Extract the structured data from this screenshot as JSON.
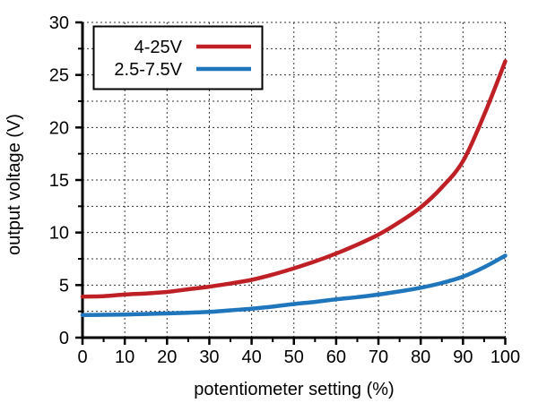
{
  "chart_data": {
    "type": "line",
    "title": "",
    "xlabel": "potentiometer setting (%)",
    "ylabel": "output voltage (V)",
    "xlim": [
      0,
      100
    ],
    "ylim": [
      0,
      30
    ],
    "x_ticks": [
      0,
      10,
      20,
      30,
      40,
      50,
      60,
      70,
      80,
      90,
      100
    ],
    "y_ticks": [
      0,
      5,
      10,
      15,
      20,
      25,
      30
    ],
    "x_minor_step": 5,
    "y_minor_step": 2.5,
    "grid": {
      "style": "dashed",
      "vertical_every_pct": 10,
      "horizontal_every_v": 2.5,
      "color": "#333333"
    },
    "legend": {
      "position": "top-left",
      "border": true
    },
    "x": [
      0,
      5,
      10,
      15,
      20,
      25,
      30,
      35,
      40,
      45,
      50,
      55,
      60,
      65,
      70,
      75,
      80,
      85,
      90,
      95,
      100
    ],
    "series": [
      {
        "name": "4-25V",
        "color": "#bf2026",
        "values": [
          3.9,
          3.95,
          4.1,
          4.2,
          4.35,
          4.6,
          4.85,
          5.15,
          5.5,
          6.0,
          6.6,
          7.25,
          8.0,
          8.85,
          9.8,
          11.0,
          12.4,
          14.3,
          16.8,
          21.2,
          26.3
        ]
      },
      {
        "name": "2.5-7.5V",
        "color": "#2076bc",
        "values": [
          2.15,
          2.17,
          2.2,
          2.25,
          2.3,
          2.37,
          2.45,
          2.6,
          2.75,
          2.95,
          3.2,
          3.4,
          3.65,
          3.85,
          4.1,
          4.4,
          4.75,
          5.2,
          5.8,
          6.7,
          7.8
        ]
      }
    ],
    "axis_color": "#000000",
    "background_color": "#ffffff"
  }
}
